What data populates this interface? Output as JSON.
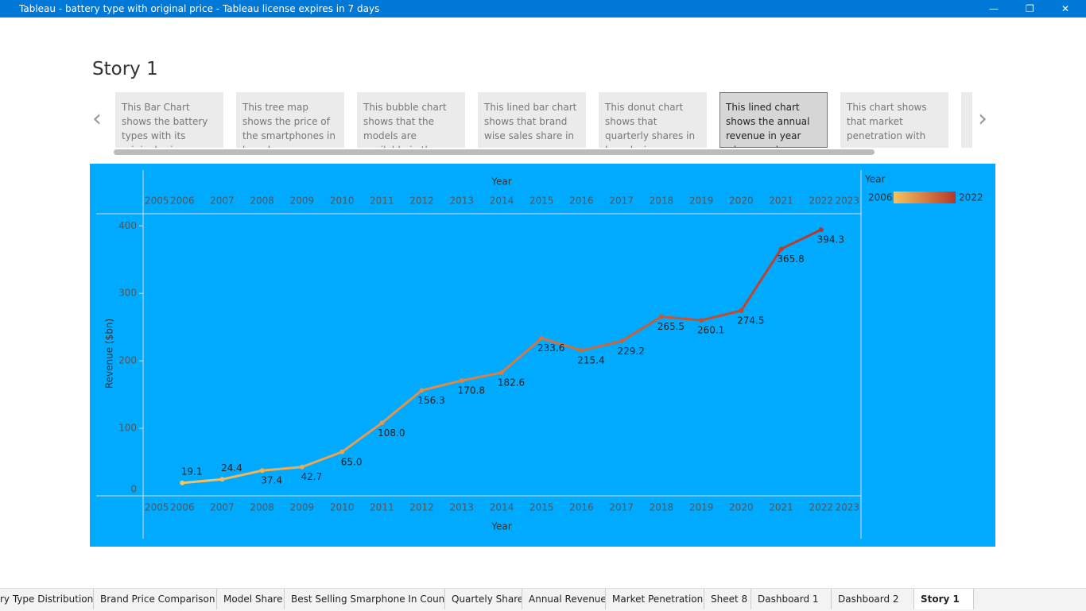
{
  "window": {
    "title": "Tableau - battery type with original price - Tableau license expires in 7 days"
  },
  "story": {
    "title": "Story 1",
    "points": [
      "This Bar Chart  shows the battery types with its  original price.",
      "This tree map shows the price of the smartphones in brand",
      "This bubble chart shows that the models are available in the",
      "This lined bar chart shows that brand wise sales share in",
      "This donut chart shows that quarterly shares in brand wise .",
      "This lined  chart shows the annual revenue in year wise. we observe",
      "This chart shows that market penetration with revenue"
    ]
  },
  "chart_data": {
    "type": "line",
    "x_label": "Year",
    "y_label": "Revenue ($bn)",
    "legend_title": "Year",
    "x": [
      2006,
      2007,
      2008,
      2009,
      2010,
      2011,
      2012,
      2013,
      2014,
      2015,
      2016,
      2017,
      2018,
      2019,
      2020,
      2021,
      2022
    ],
    "values": [
      19.1,
      24.4,
      37.4,
      42.7,
      65.0,
      108.0,
      156.3,
      170.8,
      182.6,
      233.6,
      215.4,
      229.2,
      265.5,
      260.1,
      274.5,
      365.8,
      394.3
    ],
    "value_labels": [
      "19.1",
      "24.4",
      "37.4",
      "42.7",
      "65.0",
      "108.0",
      "156.3",
      "170.8",
      "182.6",
      "233.6",
      "215.4",
      "229.2",
      "265.5",
      "260.1",
      "274.5",
      "365.8",
      "394.3"
    ],
    "xlim": [
      2005,
      2023
    ],
    "xticks": [
      2005,
      2006,
      2007,
      2008,
      2009,
      2010,
      2011,
      2012,
      2013,
      2014,
      2015,
      2016,
      2017,
      2018,
      2019,
      2020,
      2021,
      2022,
      2023
    ],
    "ylim": [
      0,
      418
    ],
    "yticks": [
      0,
      100,
      200,
      300,
      400
    ],
    "color_range": [
      "#f7c45e",
      "#b5372a"
    ],
    "background": "#00aaff"
  },
  "tabs": [
    "ry Type Distribution",
    "Brand Price Comparison",
    "Model Share",
    "Best Selling Smarphone In Coun...",
    "Quartely Share",
    "Annual Revenue",
    "Market Penetration",
    "Sheet 8",
    "Dashboard 1",
    "Dashboard 2",
    "Story 1"
  ],
  "active_tab": 10
}
